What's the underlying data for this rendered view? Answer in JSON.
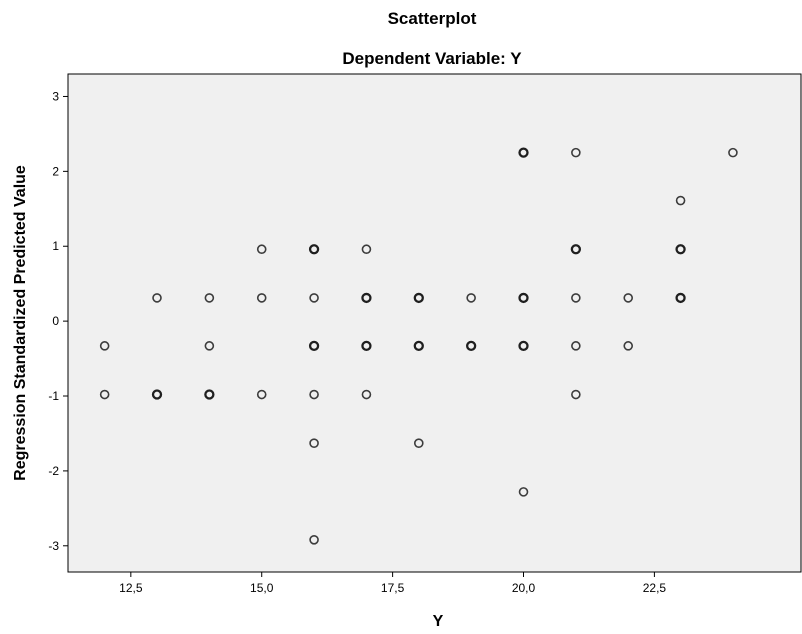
{
  "chart_data": {
    "type": "scatter",
    "title": "Scatterplot",
    "subtitle": "Dependent Variable: Y",
    "xlabel": "Y",
    "ylabel": "Regression Standardized Predicted Value",
    "xlim": [
      11.3,
      25.3
    ],
    "ylim": [
      -3.35,
      3.3
    ],
    "x_ticks": [
      12.5,
      15.0,
      17.5,
      20.0,
      22.5
    ],
    "x_tick_labels": [
      "12,5",
      "15,0",
      "17,5",
      "20,0",
      "22,5"
    ],
    "y_ticks": [
      -3,
      -2,
      -1,
      0,
      1,
      2,
      3
    ],
    "y_tick_labels": [
      "-3",
      "-2",
      "-1",
      "0",
      "1",
      "2",
      "3"
    ],
    "grid": false,
    "legend": "none",
    "marker": "hollow-circle",
    "colors": {
      "plot_background": "#f0f0f0",
      "marker": "#3c3c3c",
      "axis": "#000000"
    },
    "points": [
      {
        "x": 12,
        "y": -0.33,
        "overplotted": false
      },
      {
        "x": 12,
        "y": -0.98,
        "overplotted": false
      },
      {
        "x": 13,
        "y": 0.31,
        "overplotted": false
      },
      {
        "x": 13,
        "y": -0.98,
        "overplotted": true
      },
      {
        "x": 14,
        "y": 0.31,
        "overplotted": false
      },
      {
        "x": 14,
        "y": -0.33,
        "overplotted": false
      },
      {
        "x": 14,
        "y": -0.98,
        "overplotted": true
      },
      {
        "x": 15,
        "y": 0.96,
        "overplotted": false
      },
      {
        "x": 15,
        "y": 0.31,
        "overplotted": false
      },
      {
        "x": 15,
        "y": -0.98,
        "overplotted": false
      },
      {
        "x": 16,
        "y": 0.96,
        "overplotted": true
      },
      {
        "x": 16,
        "y": 0.31,
        "overplotted": false
      },
      {
        "x": 16,
        "y": -0.33,
        "overplotted": true
      },
      {
        "x": 16,
        "y": -0.98,
        "overplotted": false
      },
      {
        "x": 16,
        "y": -1.63,
        "overplotted": false
      },
      {
        "x": 16,
        "y": -2.92,
        "overplotted": false
      },
      {
        "x": 17,
        "y": 0.96,
        "overplotted": false
      },
      {
        "x": 17,
        "y": 0.31,
        "overplotted": true
      },
      {
        "x": 17,
        "y": -0.33,
        "overplotted": true
      },
      {
        "x": 17,
        "y": -0.98,
        "overplotted": false
      },
      {
        "x": 18,
        "y": 0.31,
        "overplotted": true
      },
      {
        "x": 18,
        "y": -0.33,
        "overplotted": true
      },
      {
        "x": 18,
        "y": -1.63,
        "overplotted": false
      },
      {
        "x": 19,
        "y": 0.31,
        "overplotted": false
      },
      {
        "x": 19,
        "y": -0.33,
        "overplotted": true
      },
      {
        "x": 20,
        "y": 2.25,
        "overplotted": true
      },
      {
        "x": 20,
        "y": 0.31,
        "overplotted": true
      },
      {
        "x": 20,
        "y": -0.33,
        "overplotted": true
      },
      {
        "x": 20,
        "y": -2.28,
        "overplotted": false
      },
      {
        "x": 21,
        "y": 2.25,
        "overplotted": false
      },
      {
        "x": 21,
        "y": 0.96,
        "overplotted": true
      },
      {
        "x": 21,
        "y": 0.31,
        "overplotted": false
      },
      {
        "x": 21,
        "y": -0.33,
        "overplotted": false
      },
      {
        "x": 21,
        "y": -0.98,
        "overplotted": false
      },
      {
        "x": 22,
        "y": 0.31,
        "overplotted": false
      },
      {
        "x": 22,
        "y": -0.33,
        "overplotted": false
      },
      {
        "x": 23,
        "y": 1.61,
        "overplotted": false
      },
      {
        "x": 23,
        "y": 0.96,
        "overplotted": true
      },
      {
        "x": 23,
        "y": 0.31,
        "overplotted": true
      },
      {
        "x": 24,
        "y": 2.25,
        "overplotted": false
      }
    ]
  }
}
